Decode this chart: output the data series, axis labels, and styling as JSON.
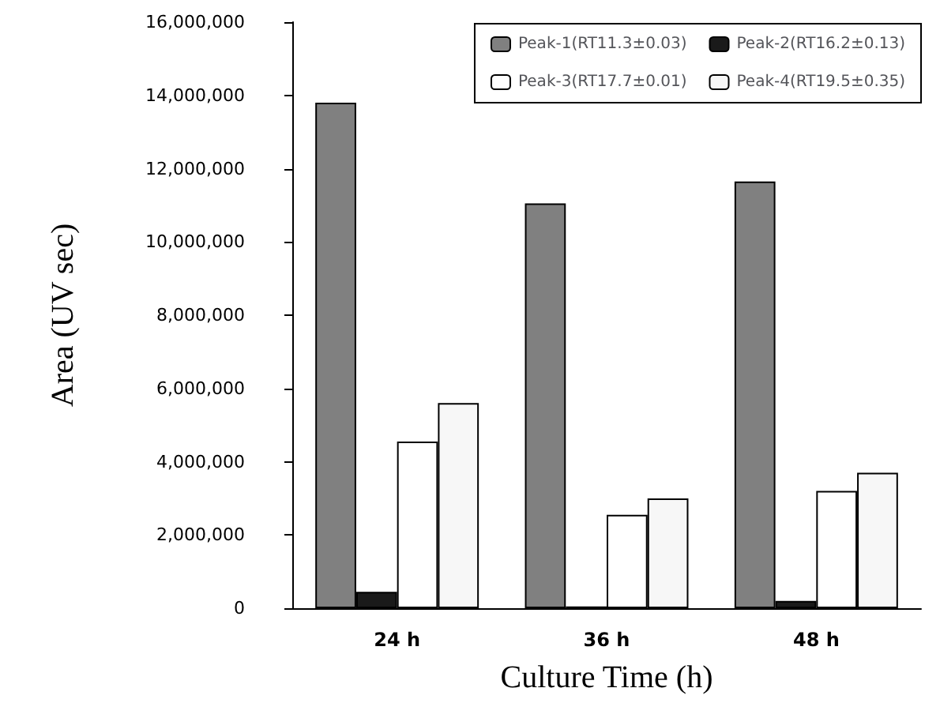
{
  "chart_data": {
    "type": "bar",
    "xlabel": "Culture Time (h)",
    "ylabel": "Area (UV sec)",
    "categories": [
      "24 h",
      "36 h",
      "48 h"
    ],
    "series": [
      {
        "name": "Peak-1(RT11.3±0.03)",
        "color": "#808080",
        "values": [
          13800000,
          11050000,
          11650000
        ]
      },
      {
        "name": "Peak-2(RT16.2±0.13)",
        "color": "#1a1a1a",
        "values": [
          450000,
          50000,
          200000
        ]
      },
      {
        "name": "Peak-3(RT17.7±0.01)",
        "color": "#ffffff",
        "values": [
          4550000,
          2550000,
          3200000
        ]
      },
      {
        "name": "Peak-4(RT19.5±0.35)",
        "color": "#f7f7f7",
        "values": [
          5600000,
          3000000,
          3700000
        ]
      }
    ],
    "ylim": [
      0,
      16000000
    ],
    "yticks": [
      {
        "value": 0,
        "label": "0"
      },
      {
        "value": 2000000,
        "label": "2,000,000"
      },
      {
        "value": 4000000,
        "label": "4,000,000"
      },
      {
        "value": 6000000,
        "label": "6,000,000"
      },
      {
        "value": 8000000,
        "label": "8,000,000"
      },
      {
        "value": 10000000,
        "label": "10,000,000"
      },
      {
        "value": 12000000,
        "label": "12,000,000"
      },
      {
        "value": 14000000,
        "label": "14,000,000"
      },
      {
        "value": 16000000,
        "label": "16,000,000"
      }
    ],
    "grid": false,
    "legend": "top right"
  }
}
